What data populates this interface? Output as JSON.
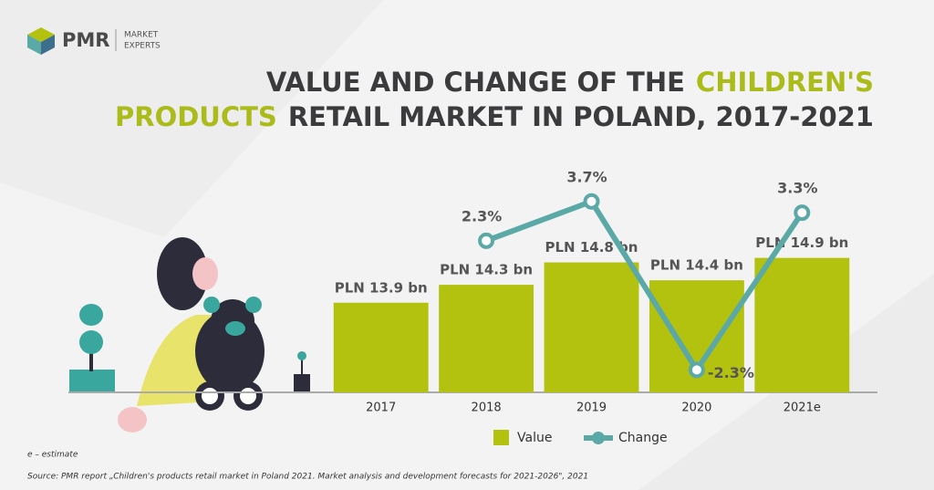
{
  "logo": {
    "name": "PMR",
    "tagline": [
      "MARKET",
      "EXPERTS"
    ]
  },
  "chart_data": {
    "type": "bar_line",
    "title": [
      "VALUE AND CHANGE OF THE",
      "CHILDREN'S",
      "PRODUCTS",
      "RETAIL MARKET IN POLAND, 2017-2021"
    ],
    "categories": [
      "2017",
      "2018",
      "2019",
      "2020",
      "2021e"
    ],
    "series": [
      {
        "name": "Value",
        "type": "bar",
        "color": "#b3c10f",
        "values": [
          13.9,
          14.3,
          14.8,
          14.4,
          14.9
        ],
        "value_labels": [
          "PLN 13.9 bn",
          "PLN 14.3 bn",
          "PLN 14.8 bn",
          "PLN 14.4 bn",
          "PLN 14.9 bn"
        ]
      },
      {
        "name": "Change",
        "type": "line",
        "axis": "y2",
        "color": "#5aa9a7",
        "values": [
          null,
          2.3,
          3.7,
          -2.3,
          3.3
        ],
        "value_labels": [
          null,
          "2.3%",
          "3.7%",
          "-2.3%",
          "3.3%"
        ]
      }
    ],
    "ylim": [
      11.9,
      17.6
    ],
    "y2lim": [
      -3.1,
      6
    ],
    "notes": [
      "e – estimate",
      "Source: PMR report „Children's products retail market in Poland 2021. Market analysis and development forecasts for 2021-2026\", 2021"
    ]
  }
}
